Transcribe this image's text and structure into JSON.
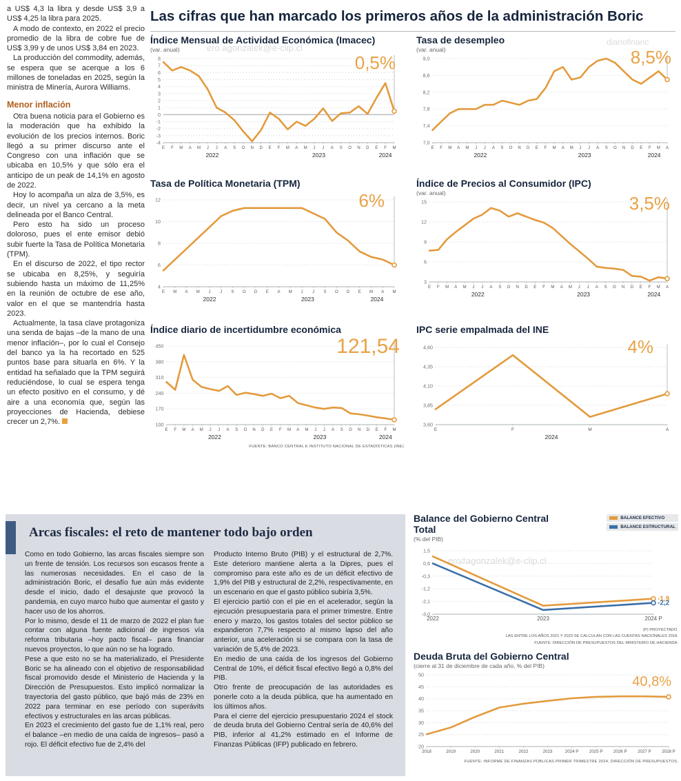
{
  "header": {
    "title": "Las cifras que han marcado los primeros años de la administración Boric"
  },
  "accent_colors": {
    "orange": "#E39A3C",
    "blue": "#3A6EA8",
    "navy": "#16253d"
  },
  "watermarks": {
    "top_left": "ero.agonzalek@e-clip.cl",
    "top_right": "diariofinanc",
    "balance": "ero#agonzalek@e-clip.cl"
  },
  "left_article": {
    "paragraphs": [
      "a US$ 4,3 la libra y desde US$ 3,9 a US$ 4,25 la libra para 2025.",
      "A modo de contexto, en 2022 el precio promedio de la libra de cobre fue de US$ 3,99 y de unos US$ 3,84 en 2023.",
      "La producción del commodity, además, se espera que se acerque a los 6 millones de toneladas en 2025, según la ministra de Minería, Aurora Williams."
    ],
    "heading": "Menor inflación",
    "paragraphs2": [
      "Otra buena noticia para el Gobierno es la moderación que ha exhibido la evolución de los precios internos. Boric llegó a su primer discurso ante el Congreso con una inflación que se ubicaba en 10,5% y que sólo era el anticipo de un peak de 14,1% en agosto de 2022.",
      "Hoy lo acompaña un alza de 3,5%, es decir, un nivel ya cercano a la meta delineada por el Banco Central.",
      "Pero esto ha sido un proceso doloroso, pues el ente emisor debió subir fuerte la Tasa de Política Monetaria (TPM).",
      "En el discurso de 2022, el tipo rector se ubicaba en 8,25%, y seguiría subiendo hasta un máximo de 11,25% en la reunión de octubre de ese año, valor en el que se mantendría hasta 2023.",
      "Actualmente, la tasa clave protagoniza una senda de bajas –de la mano de una menor inflación–, por lo cual el Consejo del banco ya la ha recortado en 525 puntos base para situarla en 6%. Y la entidad ha señalado que la TPM seguirá reduciéndose, lo cual se espera tenga un efecto positivo en el consumo, y dé aire a una economía que, según las proyecciones de Hacienda, debiese crecer un 2,7%."
    ]
  },
  "bottom_article": {
    "title": "Arcas fiscales: el reto de mantener todo bajo orden",
    "col1": [
      "Como en todo Gobierno, las arcas fiscales siempre son un frente de tensión. Los recursos son escasos frente a las numerosas necesidades. En el caso de la administración Boric, el desafío fue aún más evidente desde el inicio, dado el desajuste que provocó la pandemia, en cuyo marco hubo que aumentar el gasto y hacer uso de los ahorros.",
      "Por lo mismo, desde el 11 de marzo de 2022 el plan fue contar con alguna fuente adicional de ingresos vía reforma tributaria –hoy pacto fiscal– para financiar nuevos proyectos, lo que aún no se ha logrado.",
      "Pese a que esto no se ha materializado, el Presidente Boric se ha alineado con el objetivo de responsabilidad fiscal promovido desde el Ministerio de Hacienda y la Dirección de Presupuestos. Esto implicó normalizar la trayectoria del gasto público, que bajó más de 23% en 2022 para terminar en ese período con superávits efectivos y estructurales en las arcas públicas.",
      "En 2023 el crecimiento del gasto fue de 1,1% real, pero el balance –en medio de una caída de ingresos– pasó a rojo. El déficit efectivo fue de 2,4% del"
    ],
    "col2": [
      "Producto Interno Bruto (PIB) y el estructural de 2,7%. Este deterioro mantiene alerta a la Dipres, pues el compromiso para este año es de un déficit efectivo de 1,9% del PIB y estructural de 2,2%, respectivamente, en un escenario en que el gasto público subiría 3,5%.",
      "El ejercicio partió con el pie en el acelerador, según la ejecución presupuestaria para el primer trimestre. Entre enero y marzo, los gastos totales del sector público se expandieron 7,7% respecto al mismo lapso del año anterior, una aceleración si se compara con la tasa de variación de 5,4% de 2023.",
      "En medio de una caída de los ingresos del Gobierno Central de 10%, el déficit fiscal efectivo llegó a 0,8% del PIB.",
      "Otro frente de preocupación de las autoridades es ponerle coto a la deuda pública, que ha aumentado en los últimos años.",
      "Para el cierre del ejercicio presupuestario 2024 el stock de deuda bruta del Gobierno Central sería de 40,6% del PIB, inferior al 41,2% estimado en el Informe de Finanzas Públicas (IFP) publicado en febrero."
    ]
  },
  "chart_data": [
    {
      "id": "imacec",
      "type": "line",
      "title": "Índice Mensual de Actividad Económica (Imacec)",
      "subtitle": "(var. anual)",
      "value_label": "0,5%",
      "ylim": [
        -4,
        8
      ],
      "zero_line": true,
      "leader": true,
      "yticks": [
        {
          "v": 8,
          "label": "8"
        },
        {
          "v": 7,
          "label": "7"
        },
        {
          "v": 6,
          "label": "6"
        },
        {
          "v": 5,
          "label": "5"
        },
        {
          "v": 4,
          "label": "4"
        },
        {
          "v": 3,
          "label": "3"
        },
        {
          "v": 2,
          "label": "2"
        },
        {
          "v": 1,
          "label": "1"
        },
        {
          "v": 0,
          "label": "0"
        },
        {
          "v": -1,
          "label": "-1"
        },
        {
          "v": -2,
          "label": "-2"
        },
        {
          "v": -3,
          "label": "-3"
        },
        {
          "v": -4,
          "label": "-4"
        }
      ],
      "x_labels": [
        "E",
        "F",
        "M",
        "A",
        "M",
        "J",
        "J",
        "A",
        "S",
        "O",
        "N",
        "D",
        "E",
        "F",
        "M",
        "A",
        "M",
        "J",
        "J",
        "A",
        "S",
        "O",
        "N",
        "D",
        "E",
        "F",
        "M"
      ],
      "year_groups": [
        {
          "label": "2022",
          "from": 0,
          "to": 11
        },
        {
          "label": "2023",
          "from": 12,
          "to": 23
        },
        {
          "label": "2024",
          "from": 24,
          "to": 26
        }
      ],
      "series": [
        {
          "name": "Imacec",
          "color": "#E39A3C",
          "values": [
            7.5,
            6.3,
            6.8,
            6.3,
            5.5,
            3.6,
            1.0,
            0.3,
            -0.8,
            -2.4,
            -3.8,
            -2.2,
            0.3,
            -0.6,
            -2.1,
            -1.0,
            -1.6,
            -0.6,
            0.9,
            -0.9,
            0.2,
            0.3,
            1.2,
            0.1,
            2.4,
            4.5,
            0.5
          ]
        }
      ]
    },
    {
      "id": "desempleo",
      "type": "line",
      "title": "Tasa de desempleo",
      "subtitle": "(var. anual)",
      "value_label": "8,5%",
      "ylim": [
        7.0,
        9.0
      ],
      "leader": true,
      "yticks": [
        {
          "v": 9.0,
          "label": "9,0"
        },
        {
          "v": 8.6,
          "label": "8,6"
        },
        {
          "v": 8.2,
          "label": "8,2"
        },
        {
          "v": 7.8,
          "label": "7,8"
        },
        {
          "v": 7.4,
          "label": "7,4"
        },
        {
          "v": 7.0,
          "label": "7,0"
        }
      ],
      "x_labels": [
        "E",
        "F",
        "M",
        "A",
        "M",
        "J",
        "J",
        "A",
        "S",
        "O",
        "N",
        "D",
        "E",
        "F",
        "M",
        "A",
        "M",
        "J",
        "J",
        "A",
        "S",
        "O",
        "N",
        "D",
        "E",
        "F",
        "M",
        "A"
      ],
      "year_groups": [
        {
          "label": "2022",
          "from": 0,
          "to": 11
        },
        {
          "label": "2023",
          "from": 12,
          "to": 23
        },
        {
          "label": "2024",
          "from": 24,
          "to": 27
        }
      ],
      "series": [
        {
          "name": "Tasa de desempleo",
          "color": "#E39A3C",
          "values": [
            7.3,
            7.5,
            7.7,
            7.8,
            7.8,
            7.8,
            7.9,
            7.9,
            8.0,
            7.95,
            7.9,
            8.0,
            8.04,
            8.3,
            8.7,
            8.8,
            8.5,
            8.55,
            8.8,
            8.95,
            9.0,
            8.9,
            8.7,
            8.5,
            8.4,
            8.55,
            8.7,
            8.5
          ]
        }
      ]
    },
    {
      "id": "tpm",
      "type": "line",
      "title": "Tasa de Política Monetaria (TPM)",
      "value_label": "6%",
      "ylim": [
        4,
        12
      ],
      "leader": true,
      "yticks": [
        {
          "v": 12,
          "label": "12"
        },
        {
          "v": 10,
          "label": "10"
        },
        {
          "v": 8,
          "label": "8"
        },
        {
          "v": 6,
          "label": "6"
        },
        {
          "v": 4,
          "label": "4"
        }
      ],
      "x_labels": [
        "E",
        "M",
        "A",
        "M",
        "J",
        "J",
        "S",
        "O",
        "D",
        "E",
        "A",
        "M",
        "J",
        "J",
        "S",
        "O",
        "D",
        "E",
        "M",
        "A",
        "M"
      ],
      "year_groups": [
        {
          "label": "2022",
          "from": 0,
          "to": 8
        },
        {
          "label": "2023",
          "from": 9,
          "to": 16
        },
        {
          "label": "2024",
          "from": 17,
          "to": 20
        }
      ],
      "series": [
        {
          "name": "TPM",
          "color": "#E39A3C",
          "values": [
            5.5,
            6.5,
            7.5,
            8.5,
            9.5,
            10.5,
            11.0,
            11.25,
            11.25,
            11.25,
            11.25,
            11.25,
            11.25,
            10.75,
            10.25,
            9.0,
            8.25,
            7.25,
            6.75,
            6.5,
            6.0
          ]
        }
      ]
    },
    {
      "id": "ipc",
      "type": "line",
      "title": "Índice de Precios al Consumidor (IPC)",
      "subtitle": "(var. anual)",
      "value_label": "3,5%",
      "ylim": [
        3,
        15
      ],
      "leader": true,
      "yticks": [
        {
          "v": 15,
          "label": "15"
        },
        {
          "v": 12,
          "label": "12"
        },
        {
          "v": 9,
          "label": "9"
        },
        {
          "v": 6,
          "label": "6"
        },
        {
          "v": 3,
          "label": "3"
        }
      ],
      "x_labels": [
        "E",
        "F",
        "M",
        "A",
        "M",
        "J",
        "J",
        "A",
        "S",
        "O",
        "N",
        "D",
        "E",
        "F",
        "M",
        "A",
        "M",
        "J",
        "J",
        "A",
        "S",
        "O",
        "N",
        "D",
        "E",
        "F",
        "M",
        "A"
      ],
      "year_groups": [
        {
          "label": "2022",
          "from": 0,
          "to": 11
        },
        {
          "label": "2023",
          "from": 12,
          "to": 23
        },
        {
          "label": "2024",
          "from": 24,
          "to": 27
        }
      ],
      "series": [
        {
          "name": "IPC",
          "color": "#E39A3C",
          "values": [
            7.7,
            7.8,
            9.4,
            10.5,
            11.5,
            12.5,
            13.1,
            14.1,
            13.7,
            12.8,
            13.3,
            12.8,
            12.3,
            11.9,
            11.1,
            9.9,
            8.7,
            7.6,
            6.5,
            5.3,
            5.1,
            5.0,
            4.8,
            3.9,
            3.8,
            3.2,
            3.7,
            3.5
          ]
        }
      ]
    },
    {
      "id": "incertidumbre",
      "type": "line",
      "title": "Índice diario de incertidumbre económica",
      "value_label": "121,54",
      "ylim": [
        100,
        450
      ],
      "leader": true,
      "yticks": [
        {
          "v": 450,
          "label": "450"
        },
        {
          "v": 380,
          "label": "380"
        },
        {
          "v": 310,
          "label": "310"
        },
        {
          "v": 240,
          "label": "240"
        },
        {
          "v": 170,
          "label": "170"
        },
        {
          "v": 100,
          "label": "100"
        }
      ],
      "x_labels": [
        "E",
        "F",
        "M",
        "A",
        "M",
        "J",
        "J",
        "A",
        "S",
        "O",
        "N",
        "D",
        "E",
        "F",
        "M",
        "A",
        "M",
        "J",
        "J",
        "A",
        "S",
        "O",
        "N",
        "D",
        "E",
        "F",
        "M"
      ],
      "year_groups": [
        {
          "label": "2022",
          "from": 0,
          "to": 11
        },
        {
          "label": "2023",
          "from": 12,
          "to": 23
        },
        {
          "label": "2024",
          "from": 24,
          "to": 26
        }
      ],
      "series": [
        {
          "name": "Incertidumbre económica",
          "color": "#E39A3C",
          "values": [
            290,
            255,
            410,
            300,
            268,
            258,
            250,
            272,
            232,
            242,
            236,
            228,
            238,
            218,
            228,
            196,
            186,
            176,
            170,
            176,
            174,
            150,
            146,
            140,
            133,
            128,
            121.54
          ]
        }
      ],
      "source": "FUENTE: BANCO CENTRAL E INSTITUTO NACIONAL DE ESTADÍSTICAS (INE)"
    },
    {
      "id": "ipc_ine",
      "type": "line",
      "title": "IPC serie empalmada del INE",
      "value_label": "4%",
      "ylim": [
        3.6,
        4.6
      ],
      "leader": true,
      "xfont": 6.5,
      "yticks": [
        {
          "v": 4.6,
          "label": "4,60"
        },
        {
          "v": 4.35,
          "label": "4,35"
        },
        {
          "v": 4.1,
          "label": "4,10"
        },
        {
          "v": 3.85,
          "label": "3,85"
        },
        {
          "v": 3.6,
          "label": "3,60"
        }
      ],
      "x_labels": [
        "E",
        "F",
        "M",
        "A"
      ],
      "year_groups": [
        {
          "label": "2024",
          "from": 0,
          "to": 3
        }
      ],
      "series": [
        {
          "name": "IPC empalmado",
          "color": "#E39A3C",
          "values": [
            3.8,
            4.5,
            3.7,
            4.0
          ]
        }
      ]
    },
    {
      "id": "balance",
      "type": "line",
      "title": "Balance del Gobierno Central Total",
      "subtitle": "(% del PIB)",
      "ylim": [
        -3.0,
        1.5
      ],
      "xfont": 8,
      "right_pad": 36,
      "yticks": [
        {
          "v": 1.5,
          "label": "1,5"
        },
        {
          "v": 0.6,
          "label": "0,6"
        },
        {
          "v": -0.3,
          "label": "-0,3"
        },
        {
          "v": -1.2,
          "label": "-1,2"
        },
        {
          "v": -2.1,
          "label": "-2,1"
        },
        {
          "v": -3.0,
          "label": "-3,0"
        }
      ],
      "x_labels": [
        "2022",
        "2023",
        "2024 P"
      ],
      "series": [
        {
          "name": "BALANCE EFECTIVO",
          "color": "#E39A3C",
          "end_label": "-1,9",
          "values": [
            1.1,
            -2.4,
            -1.9
          ]
        },
        {
          "name": "BALANCE ESTRUCTURAL",
          "color": "#3A6EA8",
          "end_label": "-2,2",
          "values": [
            0.6,
            -2.7,
            -2.2
          ]
        }
      ],
      "notes": [
        "(P) PROYECTADO.",
        "LAS ENTRE LOS AÑOS 2021 Y 2023 SE CALCULAN CON LAS CUENTAS NACIONALES 2018.",
        "FUENTE: DIRECCIÓN DE PRESUPUESTOS DEL MINISTERIO DE HACIENDA."
      ]
    },
    {
      "id": "deuda",
      "type": "line",
      "title": "Deuda Bruta del Gobierno Central",
      "subtitle": "(cierre al 31 de diciembre de cada año, % del PIB)",
      "value_label": "40,8%",
      "ylim": [
        20,
        50
      ],
      "xfont": 6.2,
      "yticks": [
        {
          "v": 50,
          "label": "50"
        },
        {
          "v": 45,
          "label": "45"
        },
        {
          "v": 40,
          "label": "40"
        },
        {
          "v": 35,
          "label": "35"
        },
        {
          "v": 30,
          "label": "30"
        },
        {
          "v": 25,
          "label": "25"
        },
        {
          "v": 20,
          "label": "20"
        }
      ],
      "x_labels": [
        "2018",
        "2019",
        "2020",
        "2021",
        "2022",
        "2023",
        "2024 P",
        "2025 P",
        "2026 P",
        "2027 P",
        "2028 P"
      ],
      "series": [
        {
          "name": "Deuda bruta",
          "color": "#E39A3C",
          "values": [
            25.1,
            28.0,
            32.4,
            36.3,
            37.9,
            39.1,
            40.2,
            40.8,
            41.0,
            41.0,
            40.8
          ]
        }
      ],
      "source": "FUENTE: INFORME DE FINANZAS PÚBLICAS PRIMER TRIMESTRE 2024, DIRECCIÓN DE PRESUPUESTOS."
    }
  ]
}
